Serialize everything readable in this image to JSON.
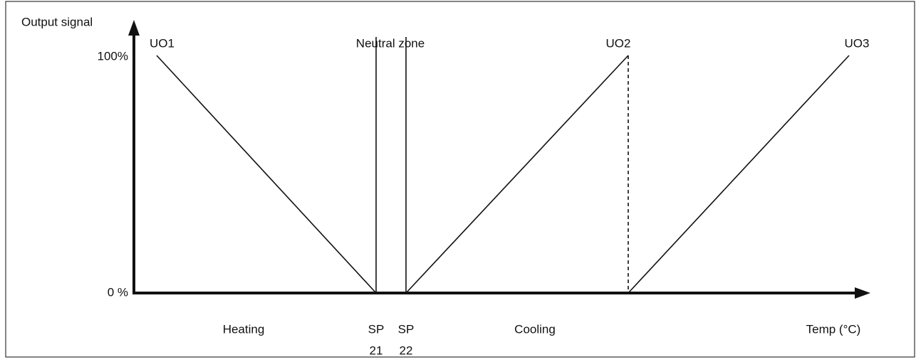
{
  "axes": {
    "y_label": "Output signal",
    "y_max": "100%",
    "y_min": "0 %",
    "x_label": "Temp (°C)"
  },
  "outputs": [
    "UO1",
    "UO2",
    "UO3"
  ],
  "neutral_zone": "Neutral zone",
  "regions": [
    "Heating",
    "Cooling"
  ],
  "setpoints": [
    {
      "name": "SP",
      "number": "21"
    },
    {
      "name": "SP",
      "number": "22"
    }
  ]
}
